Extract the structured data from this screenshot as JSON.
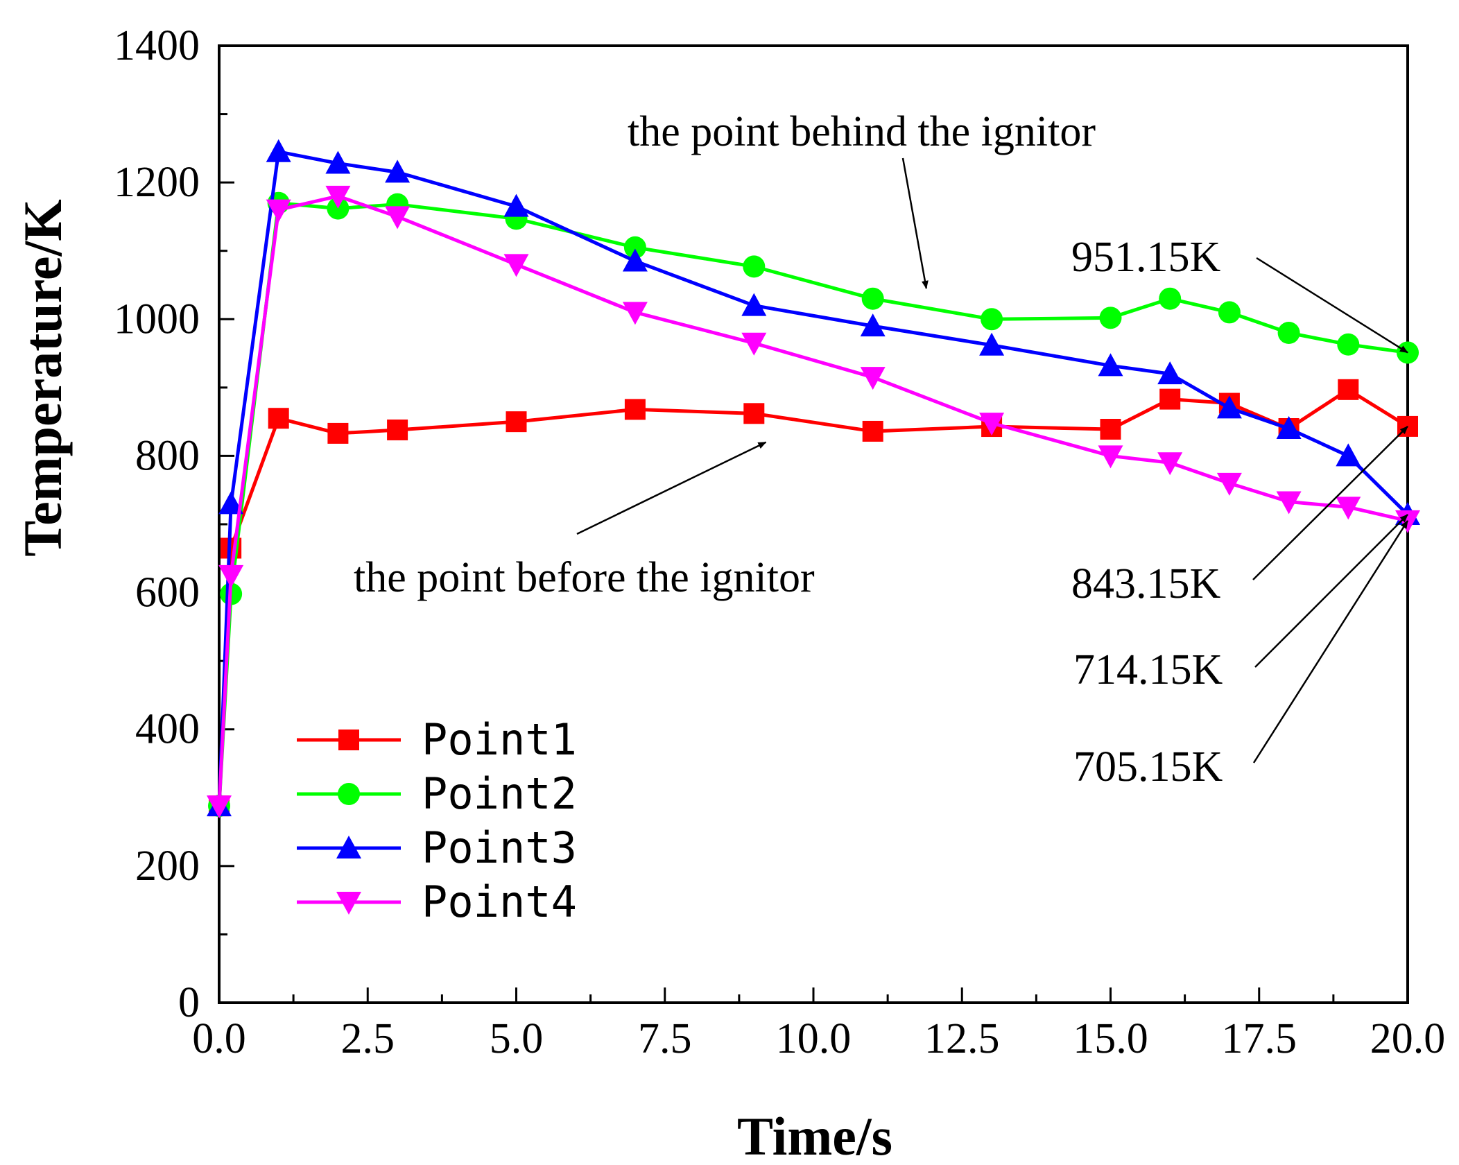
{
  "chart_data": {
    "type": "line",
    "xlabel": "Time/s",
    "ylabel": "Temperature/K",
    "xlim": [
      0,
      20
    ],
    "ylim": [
      0,
      1400
    ],
    "x_ticks": [
      "0.0",
      "2.5",
      "5.0",
      "7.5",
      "10.0",
      "12.5",
      "15.0",
      "17.5",
      "20.0"
    ],
    "y_ticks": [
      "0",
      "200",
      "400",
      "600",
      "800",
      "1000",
      "1200",
      "1400"
    ],
    "grid": false,
    "legend_position": "lower-left",
    "series": [
      {
        "name": "Point1",
        "color": "#ff0000",
        "marker": "square",
        "x": [
          0,
          0.2,
          1,
          2,
          3,
          5,
          7,
          9,
          11,
          13,
          15,
          16,
          17,
          18,
          19,
          20
        ],
        "y": [
          288,
          665,
          855,
          833,
          838,
          850,
          868,
          862,
          836,
          843,
          839,
          883,
          877,
          840,
          897,
          843.15
        ]
      },
      {
        "name": "Point2",
        "color": "#00ff00",
        "marker": "circle",
        "x": [
          0,
          0.2,
          1,
          2,
          3,
          5,
          7,
          9,
          11,
          13,
          15,
          16,
          17,
          18,
          19,
          20
        ],
        "y": [
          288,
          598,
          1170,
          1162,
          1168,
          1147,
          1105,
          1077,
          1030,
          1000,
          1002,
          1030,
          1010,
          980,
          963,
          951.15
        ]
      },
      {
        "name": "Point3",
        "color": "#0000ff",
        "marker": "triangle-up",
        "x": [
          0,
          0.2,
          1,
          2,
          3,
          5,
          7,
          9,
          11,
          13,
          15,
          16,
          17,
          18,
          19,
          20
        ],
        "y": [
          288,
          730,
          1245,
          1228,
          1215,
          1165,
          1085,
          1020,
          990,
          962,
          932,
          920,
          870,
          840,
          800,
          714.15
        ]
      },
      {
        "name": "Point4",
        "color": "#ff00ff",
        "marker": "triangle-down",
        "x": [
          0,
          0.2,
          1,
          2,
          3,
          5,
          7,
          9,
          11,
          13,
          15,
          16,
          17,
          18,
          19,
          20
        ],
        "y": [
          288,
          625,
          1160,
          1180,
          1150,
          1080,
          1010,
          965,
          915,
          848,
          800,
          790,
          760,
          733,
          725,
          705.15
        ]
      }
    ],
    "annotations": [
      {
        "id": "behind",
        "text": "the point behind the ignitor",
        "target_x": 11.9,
        "target_y": 1045
      },
      {
        "id": "before",
        "text": "the point before the ignitor",
        "target_x": 9.2,
        "target_y": 820
      },
      {
        "id": "a951",
        "text": "951.15K",
        "target_x": 20,
        "target_y": 951.15
      },
      {
        "id": "a843",
        "text": "843.15K",
        "target_x": 20,
        "target_y": 843.15
      },
      {
        "id": "a714",
        "text": "714.15K",
        "target_x": 20,
        "target_y": 714.15
      },
      {
        "id": "a705",
        "text": "705.15K",
        "target_x": 20,
        "target_y": 705.15
      }
    ]
  }
}
